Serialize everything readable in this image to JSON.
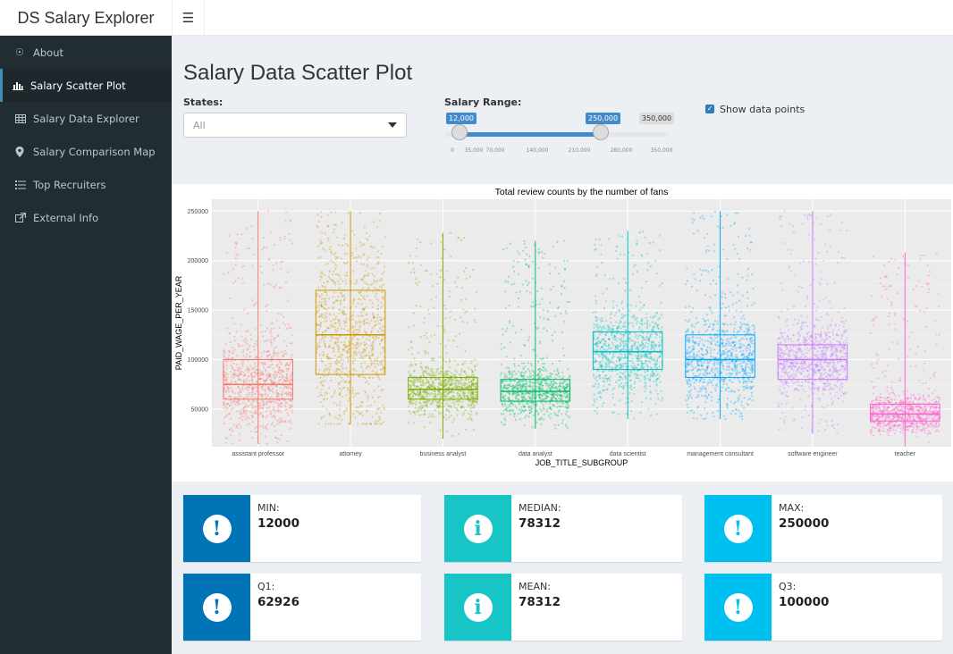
{
  "app": {
    "title": "DS Salary Explorer"
  },
  "sidebar": {
    "items": [
      {
        "label": "About",
        "icon": "compass-icon",
        "active": false
      },
      {
        "label": "Salary Scatter Plot",
        "icon": "bar-chart-icon",
        "active": true
      },
      {
        "label": "Salary Data Explorer",
        "icon": "table-icon",
        "active": false
      },
      {
        "label": "Salary Comparison Map",
        "icon": "map-marker-icon",
        "active": false
      },
      {
        "label": "Top Recruiters",
        "icon": "list-icon",
        "active": false
      },
      {
        "label": "External Info",
        "icon": "external-link-icon",
        "active": false
      }
    ]
  },
  "page": {
    "title": "Salary Data Scatter Plot"
  },
  "controls": {
    "states_label": "States:",
    "states_value": "All",
    "salary_label": "Salary Range:",
    "salary_min": "12,000",
    "salary_max": "250,000",
    "salary_limit": "350,000",
    "salary_ticks": [
      "0",
      "35,000",
      "70,000",
      "140,000",
      "210,000",
      "280,000",
      "350,000"
    ],
    "show_points_label": "Show data points",
    "show_points_checked": true
  },
  "chart_data": {
    "type": "scatter",
    "title": "Total review counts by the number of fans",
    "xlabel": "JOB_TITLE_SUBGROUP",
    "ylabel": "PAID_WAGE_PER_YEAR",
    "ylim": [
      12000,
      262000
    ],
    "yticks": [
      "50000",
      "100000",
      "150000",
      "200000",
      "250000"
    ],
    "grid": true,
    "categories": [
      "assistant professor",
      "attorney",
      "business analyst",
      "data analyst",
      "data scientist",
      "management consultant",
      "software engineer",
      "teacher"
    ],
    "colors": [
      "#F8766D",
      "#CD9600",
      "#7CAE00",
      "#00BE67",
      "#00BFC4",
      "#00A9FF",
      "#C77CFF",
      "#FF61CC"
    ],
    "series": [
      {
        "category": "assistant professor",
        "min": 15000,
        "q1": 60000,
        "median": 75000,
        "q3": 100000,
        "max": 250000
      },
      {
        "category": "attorney",
        "min": 35000,
        "q1": 85000,
        "median": 125000,
        "q3": 170000,
        "max": 250000
      },
      {
        "category": "business analyst",
        "min": 20000,
        "q1": 60000,
        "median": 70000,
        "q3": 82000,
        "max": 228000
      },
      {
        "category": "data analyst",
        "min": 30000,
        "q1": 58000,
        "median": 68000,
        "q3": 80000,
        "max": 220000
      },
      {
        "category": "data scientist",
        "min": 40000,
        "q1": 90000,
        "median": 108000,
        "q3": 128000,
        "max": 230000
      },
      {
        "category": "management consultant",
        "min": 40000,
        "q1": 82000,
        "median": 100000,
        "q3": 125000,
        "max": 250000
      },
      {
        "category": "software engineer",
        "min": 25000,
        "q1": 80000,
        "median": 100000,
        "q3": 115000,
        "max": 250000
      },
      {
        "category": "teacher",
        "min": 12000,
        "q1": 38000,
        "median": 45000,
        "q3": 55000,
        "max": 208000
      }
    ]
  },
  "stats": [
    {
      "label": "MIN:",
      "value": "12000",
      "color": "#0073b7",
      "icon": "exclamation-icon"
    },
    {
      "label": "MEDIAN:",
      "value": "78312",
      "color": "#17c5c7",
      "icon": "info-icon"
    },
    {
      "label": "MAX:",
      "value": "250000",
      "color": "#00c0ef",
      "icon": "exclamation-icon"
    },
    {
      "label": "Q1:",
      "value": "62926",
      "color": "#0073b7",
      "icon": "exclamation-icon"
    },
    {
      "label": "MEAN:",
      "value": "78312",
      "color": "#17c5c7",
      "icon": "info-icon"
    },
    {
      "label": "Q3:",
      "value": "100000",
      "color": "#00c0ef",
      "icon": "exclamation-icon"
    }
  ]
}
